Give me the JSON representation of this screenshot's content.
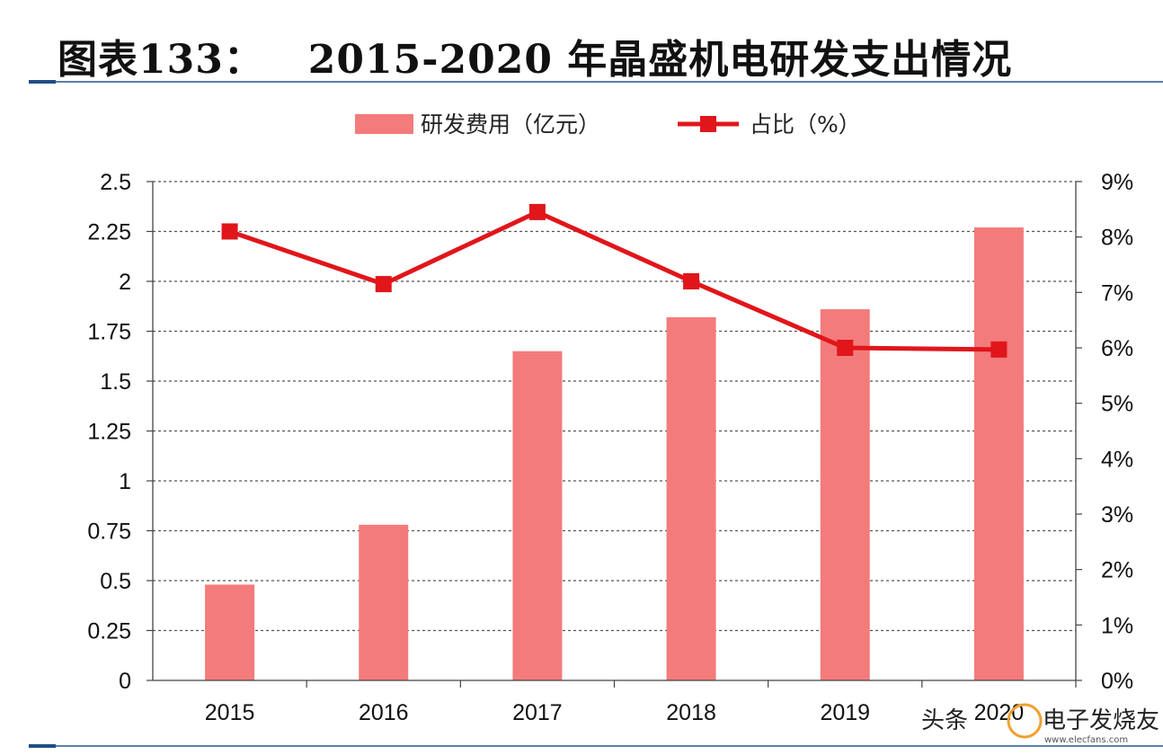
{
  "title": "图表133：   2015-2020 年晶盛机电研发支出情况",
  "watermark": {
    "prefix": "头条",
    "brand": "电子发烧友",
    "site": "www.elecfans.com"
  },
  "colors": {
    "bar": "#f47b7b",
    "line": "#e0161b",
    "grid": "#555555",
    "rule": "#5b7fa8"
  },
  "chart_data": {
    "type": "bar",
    "categories": [
      "2015",
      "2016",
      "2017",
      "2018",
      "2019",
      "2020"
    ],
    "series": [
      {
        "name": "研发费用（亿元）",
        "type": "bar",
        "axis": "left",
        "values": [
          0.48,
          0.78,
          1.65,
          1.82,
          1.86,
          2.27
        ]
      },
      {
        "name": "占比（%）",
        "type": "line",
        "axis": "right",
        "marker": "square",
        "values": [
          8.1,
          7.15,
          8.45,
          7.2,
          6.0,
          5.97
        ]
      }
    ],
    "y_left": {
      "min": 0,
      "max": 2.5,
      "ticks": [
        "0",
        "0.25",
        "0.5",
        "0.75",
        "1",
        "1.25",
        "1.5",
        "1.75",
        "2",
        "2.25",
        "2.5"
      ]
    },
    "y_right": {
      "min": 0,
      "max": 9,
      "ticks": [
        "0%",
        "1%",
        "2%",
        "3%",
        "4%",
        "5%",
        "6%",
        "7%",
        "8%",
        "9%"
      ]
    },
    "grid": "dashed-horizontal",
    "legend_position": "top"
  }
}
